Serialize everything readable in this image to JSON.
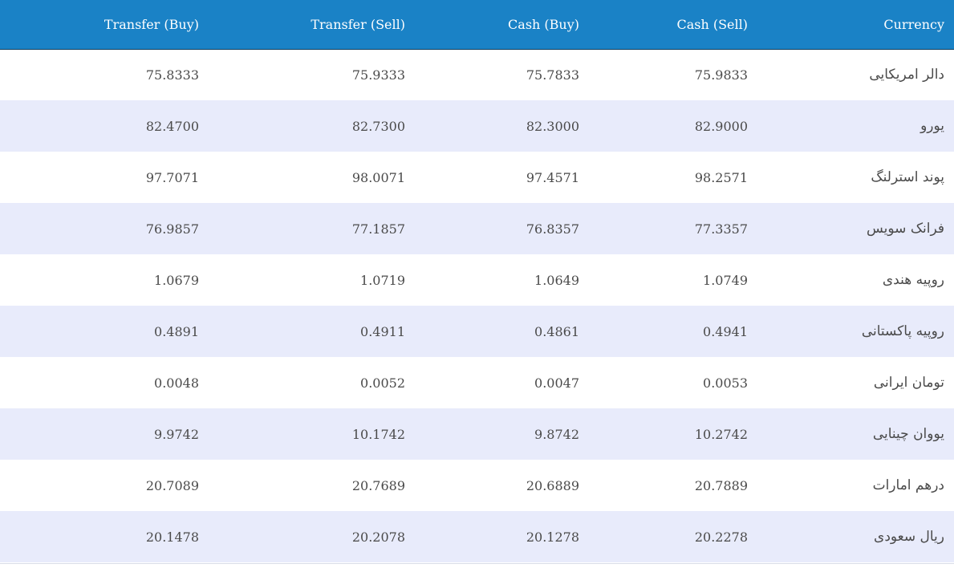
{
  "table": {
    "headers": {
      "transfer_buy": "Transfer (Buy)",
      "transfer_sell": "Transfer (Sell)",
      "cash_buy": "Cash (Buy)",
      "cash_sell": "Cash (Sell)",
      "currency": "Currency"
    },
    "rows": [
      {
        "transfer_buy": "75.8333",
        "transfer_sell": "75.9333",
        "cash_buy": "75.7833",
        "cash_sell": "75.9833",
        "currency": "دالر امریکایی"
      },
      {
        "transfer_buy": "82.4700",
        "transfer_sell": "82.7300",
        "cash_buy": "82.3000",
        "cash_sell": "82.9000",
        "currency": "یورو"
      },
      {
        "transfer_buy": "97.7071",
        "transfer_sell": "98.0071",
        "cash_buy": "97.4571",
        "cash_sell": "98.2571",
        "currency": "پوند استرلنگ"
      },
      {
        "transfer_buy": "76.9857",
        "transfer_sell": "77.1857",
        "cash_buy": "76.8357",
        "cash_sell": "77.3357",
        "currency": "فرانک سویس"
      },
      {
        "transfer_buy": "1.0679",
        "transfer_sell": "1.0719",
        "cash_buy": "1.0649",
        "cash_sell": "1.0749",
        "currency": "روپیه هندی"
      },
      {
        "transfer_buy": "0.4891",
        "transfer_sell": "0.4911",
        "cash_buy": "0.4861",
        "cash_sell": "0.4941",
        "currency": "روپیه پاکستانی"
      },
      {
        "transfer_buy": "0.0048",
        "transfer_sell": "0.0052",
        "cash_buy": "0.0047",
        "cash_sell": "0.0053",
        "currency": "تومان ایرانی"
      },
      {
        "transfer_buy": "9.9742",
        "transfer_sell": "10.1742",
        "cash_buy": "9.8742",
        "cash_sell": "10.2742",
        "currency": "یووان چینایی"
      },
      {
        "transfer_buy": "20.7089",
        "transfer_sell": "20.7689",
        "cash_buy": "20.6889",
        "cash_sell": "20.7889",
        "currency": "درهم امارات"
      },
      {
        "transfer_buy": "20.1478",
        "transfer_sell": "20.2078",
        "cash_buy": "20.1278",
        "cash_sell": "20.2278",
        "currency": "ریال سعودی"
      }
    ]
  },
  "colors": {
    "header_bg": "#1a82c6",
    "header_text": "#ffffff",
    "row_alt_bg": "#e8ebfb",
    "row_bg": "#ffffff",
    "cell_text": "#4a4a4a"
  }
}
